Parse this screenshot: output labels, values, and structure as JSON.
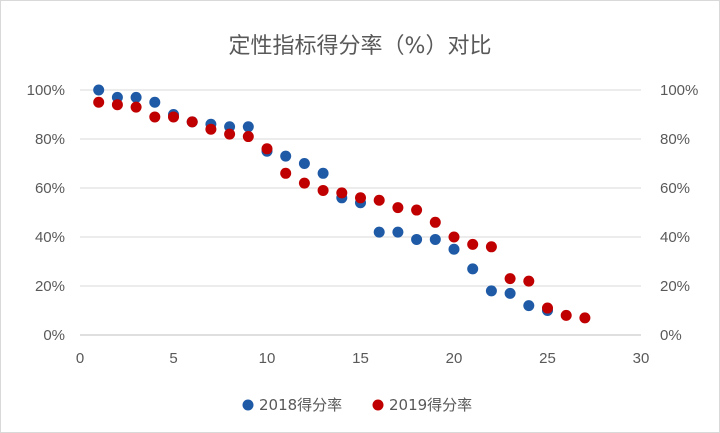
{
  "chart_data": {
    "type": "scatter",
    "title": "定性指标得分率（%）对比",
    "xlabel": "",
    "ylabel": "",
    "xlim": [
      0,
      30
    ],
    "ylim": [
      0,
      1
    ],
    "x_ticks": [
      "0",
      "5",
      "10",
      "15",
      "20",
      "25",
      "30"
    ],
    "y_ticks": [
      "0%",
      "20%",
      "40%",
      "60%",
      "80%",
      "100%"
    ],
    "y2_ticks": [
      "0%",
      "20%",
      "40%",
      "60%",
      "80%",
      "100%"
    ],
    "grid": "horizontal",
    "legend": "bottom",
    "series": [
      {
        "name": "2018得分率",
        "color": "#1f5aa6",
        "points": [
          [
            1,
            1.0
          ],
          [
            2,
            0.97
          ],
          [
            3,
            0.97
          ],
          [
            4,
            0.95
          ],
          [
            5,
            0.9
          ],
          [
            6,
            0.87
          ],
          [
            7,
            0.86
          ],
          [
            8,
            0.85
          ],
          [
            9,
            0.85
          ],
          [
            10,
            0.75
          ],
          [
            11,
            0.73
          ],
          [
            12,
            0.7
          ],
          [
            13,
            0.66
          ],
          [
            14,
            0.56
          ],
          [
            15,
            0.54
          ],
          [
            16,
            0.42
          ],
          [
            17,
            0.42
          ],
          [
            18,
            0.39
          ],
          [
            19,
            0.39
          ],
          [
            20,
            0.35
          ],
          [
            21,
            0.27
          ],
          [
            22,
            0.18
          ],
          [
            23,
            0.17
          ],
          [
            24,
            0.12
          ],
          [
            25,
            0.1
          ]
        ]
      },
      {
        "name": "2019得分率",
        "color": "#c00000",
        "points": [
          [
            1,
            0.95
          ],
          [
            2,
            0.94
          ],
          [
            3,
            0.93
          ],
          [
            4,
            0.89
          ],
          [
            5,
            0.89
          ],
          [
            6,
            0.87
          ],
          [
            7,
            0.84
          ],
          [
            8,
            0.82
          ],
          [
            9,
            0.81
          ],
          [
            10,
            0.76
          ],
          [
            11,
            0.66
          ],
          [
            12,
            0.62
          ],
          [
            13,
            0.59
          ],
          [
            14,
            0.58
          ],
          [
            15,
            0.56
          ],
          [
            16,
            0.55
          ],
          [
            17,
            0.52
          ],
          [
            18,
            0.51
          ],
          [
            19,
            0.46
          ],
          [
            20,
            0.4
          ],
          [
            21,
            0.37
          ],
          [
            22,
            0.36
          ],
          [
            23,
            0.23
          ],
          [
            24,
            0.22
          ],
          [
            25,
            0.11
          ],
          [
            26,
            0.08
          ],
          [
            27,
            0.07
          ]
        ]
      }
    ]
  }
}
